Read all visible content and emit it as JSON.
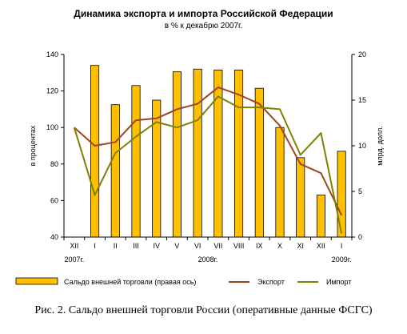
{
  "chart_data": {
    "type": "bar",
    "title": "Динамика экспорта и импорта Российской Федерации",
    "subtitle": "в % к декабрю 2007г.",
    "ylabel_left": "в процентах",
    "ylabel_right": "млрд. долл.",
    "ylim_left": [
      40,
      140
    ],
    "yticks_left": [
      "40",
      "60",
      "80",
      "100",
      "120",
      "140"
    ],
    "ylim_right": [
      0,
      20
    ],
    "yticks_right": [
      "0",
      "5",
      "10",
      "15",
      "20"
    ],
    "categories": [
      "XII",
      "I",
      "II",
      "III",
      "IV",
      "V",
      "VI",
      "VII",
      "VIII",
      "IX",
      "X",
      "XI",
      "XII",
      "I"
    ],
    "years": [
      "2007г.",
      "2008г.",
      "2009г."
    ],
    "series": [
      {
        "name": "Сальдо внешней торговли (правая ось)",
        "type": "bar",
        "axis": "right",
        "color": "#FFC000",
        "values": [
          null,
          18.8,
          14.5,
          16.6,
          15.0,
          18.1,
          18.4,
          18.3,
          18.3,
          16.3,
          12.0,
          8.7,
          4.6,
          9.4
        ]
      },
      {
        "name": "Экспорт",
        "type": "line",
        "axis": "left",
        "color": "#A0451A",
        "values": [
          100,
          90,
          92,
          104,
          105,
          110,
          113,
          122,
          118,
          113,
          101,
          80,
          75,
          52
        ]
      },
      {
        "name": "Импорт",
        "type": "line",
        "axis": "left",
        "color": "#808000",
        "values": [
          100,
          63,
          86,
          95,
          103,
          100,
          104,
          117,
          111,
          111,
          110,
          85,
          97,
          42
        ]
      }
    ]
  },
  "caption": "Рис. 2. Сальдо внешней торговли России (оперативные данные ФСГС)"
}
